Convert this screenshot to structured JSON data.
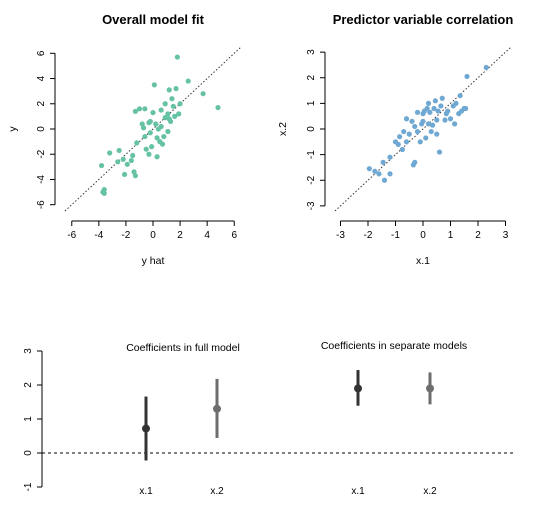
{
  "chart_data": [
    {
      "type": "scatter",
      "title": "Overall model fit",
      "xlabel": "y hat",
      "ylabel": "y",
      "xlim": [
        -6.5,
        6.5
      ],
      "ylim": [
        -6.5,
        6.5
      ],
      "xticks": [
        "-6",
        "-4",
        "-2",
        "0",
        "2",
        "4",
        "6"
      ],
      "yticks": [
        "-6",
        "-4",
        "-2",
        "0",
        "2",
        "4",
        "6"
      ],
      "point_color": "#66c2a5",
      "reference_line": "y = x, dotted",
      "grid": false,
      "points": [
        [
          -3.6,
          -4.8
        ],
        [
          -3.6,
          -5.1
        ],
        [
          -3.7,
          -5.0
        ],
        [
          -3.8,
          -2.9
        ],
        [
          -3.2,
          -1.9
        ],
        [
          -2.6,
          -2.6
        ],
        [
          -2.5,
          -1.7
        ],
        [
          -2.2,
          -2.4
        ],
        [
          -2.1,
          -3.6
        ],
        [
          -1.9,
          -2.8
        ],
        [
          -1.6,
          -2.5
        ],
        [
          -1.5,
          -2.1
        ],
        [
          -1.4,
          -3.4
        ],
        [
          -1.3,
          -3.7
        ],
        [
          -1.2,
          -1.1
        ],
        [
          -1.3,
          1.4
        ],
        [
          -1.0,
          1.6
        ],
        [
          -0.7,
          0.1
        ],
        [
          -0.6,
          -0.6
        ],
        [
          -0.5,
          -1.6
        ],
        [
          -0.3,
          -2.0
        ],
        [
          -0.2,
          -0.3
        ],
        [
          -0.1,
          -1.4
        ],
        [
          -0.2,
          0.6
        ],
        [
          0.0,
          1.3
        ],
        [
          0.1,
          3.5
        ],
        [
          0.2,
          0.4
        ],
        [
          0.3,
          -0.7
        ],
        [
          0.3,
          -2.2
        ],
        [
          0.5,
          -1.0
        ],
        [
          0.6,
          1.5
        ],
        [
          0.6,
          0.2
        ],
        [
          0.8,
          -0.6
        ],
        [
          0.9,
          0.9
        ],
        [
          0.9,
          2.0
        ],
        [
          1.1,
          1.2
        ],
        [
          1.1,
          -0.2
        ],
        [
          1.2,
          3.1
        ],
        [
          1.2,
          0.8
        ],
        [
          1.4,
          2.4
        ],
        [
          1.3,
          0.6
        ],
        [
          1.5,
          1.8
        ],
        [
          1.6,
          1.0
        ],
        [
          1.7,
          3.2
        ],
        [
          1.8,
          5.7
        ],
        [
          1.9,
          1.2
        ],
        [
          2.0,
          2.0
        ],
        [
          -0.8,
          0.4
        ],
        [
          0.4,
          0.0
        ],
        [
          0.7,
          -1.2
        ],
        [
          2.6,
          3.8
        ],
        [
          3.7,
          2.8
        ],
        [
          4.8,
          1.7
        ],
        [
          -0.6,
          1.6
        ],
        [
          -0.3,
          0.5
        ]
      ]
    },
    {
      "type": "scatter",
      "title": "Predictor variable correlation",
      "xlabel": "x.1",
      "ylabel": "x.2",
      "xlim": [
        -3.2,
        3.2
      ],
      "ylim": [
        -3.2,
        3.2
      ],
      "xticks": [
        "-3",
        "-2",
        "-1",
        "0",
        "1",
        "2",
        "3"
      ],
      "yticks": [
        "-3",
        "-2",
        "-1",
        "0",
        "1",
        "2",
        "3"
      ],
      "point_color": "#6fa8d2",
      "reference_line": "y = x, dotted",
      "grid": false,
      "points": [
        [
          -1.95,
          -1.55
        ],
        [
          -1.75,
          -1.65
        ],
        [
          -1.6,
          -1.75
        ],
        [
          -1.4,
          -2.0
        ],
        [
          -1.2,
          -1.75
        ],
        [
          -1.45,
          -1.3
        ],
        [
          -1.2,
          -1.1
        ],
        [
          -1.0,
          -0.5
        ],
        [
          -0.9,
          -0.6
        ],
        [
          -0.85,
          -0.3
        ],
        [
          -0.75,
          -0.8
        ],
        [
          -0.7,
          -0.1
        ],
        [
          -0.6,
          -0.5
        ],
        [
          -0.5,
          -0.2
        ],
        [
          -0.4,
          0.3
        ],
        [
          -0.35,
          -1.4
        ],
        [
          -0.3,
          -1.3
        ],
        [
          -0.3,
          0.1
        ],
        [
          -0.2,
          -0.1
        ],
        [
          -0.1,
          -0.5
        ],
        [
          -0.05,
          0.2
        ],
        [
          0.0,
          0.6
        ],
        [
          0.05,
          0.7
        ],
        [
          0.1,
          -0.35
        ],
        [
          0.15,
          0.8
        ],
        [
          0.2,
          0.2
        ],
        [
          0.2,
          1.0
        ],
        [
          0.25,
          0.65
        ],
        [
          0.3,
          -0.1
        ],
        [
          0.35,
          0.15
        ],
        [
          0.4,
          0.8
        ],
        [
          0.45,
          1.1
        ],
        [
          0.5,
          0.35
        ],
        [
          0.5,
          -0.2
        ],
        [
          0.55,
          0.7
        ],
        [
          0.6,
          -0.9
        ],
        [
          0.65,
          0.9
        ],
        [
          0.7,
          1.2
        ],
        [
          0.8,
          0.35
        ],
        [
          0.85,
          0.6
        ],
        [
          0.9,
          0.7
        ],
        [
          1.0,
          0.4
        ],
        [
          1.1,
          0.9
        ],
        [
          1.15,
          0.2
        ],
        [
          1.2,
          1.0
        ],
        [
          1.3,
          0.6
        ],
        [
          1.35,
          1.3
        ],
        [
          1.4,
          0.7
        ],
        [
          1.5,
          0.8
        ],
        [
          1.55,
          0.8
        ],
        [
          1.6,
          2.05
        ],
        [
          2.3,
          2.4
        ],
        [
          -0.6,
          0.4
        ],
        [
          -0.2,
          0.65
        ],
        [
          0.0,
          0.3
        ]
      ]
    },
    {
      "type": "coefficient_plot",
      "yticks": [
        "-1",
        "0",
        "1",
        "2",
        "3"
      ],
      "ylim": [
        -1.1,
        3.1
      ],
      "zero_line": "dashed at 0",
      "panels": [
        {
          "title": "Coefficients in full model",
          "categories": [
            "x.1",
            "x.2"
          ],
          "estimates": [
            0.72,
            1.3
          ],
          "lower": [
            -0.22,
            0.44
          ],
          "upper": [
            1.66,
            2.18
          ],
          "colors": [
            "#333333",
            "#6e6e6e"
          ]
        },
        {
          "title": "Coefficients in separate models",
          "categories": [
            "x.1",
            "x.2"
          ],
          "estimates": [
            1.9,
            1.9
          ],
          "lower": [
            1.39,
            1.43
          ],
          "upper": [
            2.44,
            2.37
          ],
          "colors": [
            "#333333",
            "#6e6e6e"
          ]
        }
      ]
    }
  ]
}
